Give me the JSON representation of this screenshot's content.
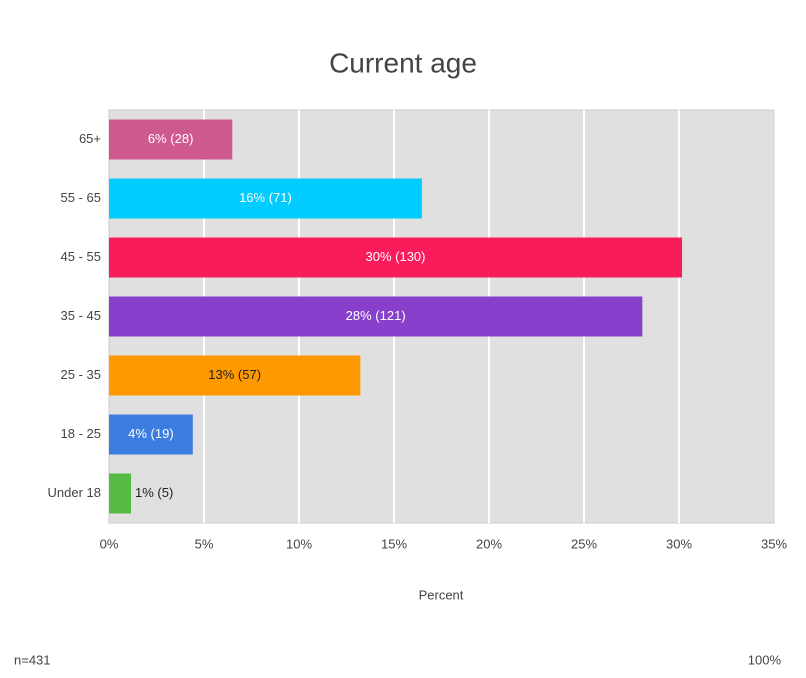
{
  "chart_data": {
    "type": "hbar",
    "title": "Current age",
    "categories": [
      "65+",
      "55 - 65",
      "45 - 55",
      "35 - 45",
      "25 - 35",
      "18 - 25",
      "Under 18"
    ],
    "values": [
      6.49,
      16.47,
      30.16,
      28.07,
      13.23,
      4.41,
      1.16
    ],
    "value_labels": [
      "6% (28)",
      "16% (71)",
      "30% (130)",
      "28% (121)",
      "13% (57)",
      "4% (19)",
      "1% (5)"
    ],
    "colors": [
      "#cf5a8f",
      "#00ccff",
      "#f81d5a",
      "#8840cc",
      "#ff9900",
      "#3b7de0",
      "#55bb44"
    ],
    "xlim": [
      0,
      35
    ],
    "xticks": [
      {
        "value": 0,
        "label": "0%"
      },
      {
        "value": 5,
        "label": "5%"
      },
      {
        "value": 10,
        "label": "10%"
      },
      {
        "value": 15,
        "label": "15%"
      },
      {
        "value": 20,
        "label": "20%"
      },
      {
        "value": 25,
        "label": "25%"
      },
      {
        "value": 30,
        "label": "30%"
      },
      {
        "value": 35,
        "label": "35%"
      }
    ],
    "xlabel": "Percent",
    "grid": true,
    "footnote_left": "n=431",
    "footnote_right": "100%"
  }
}
